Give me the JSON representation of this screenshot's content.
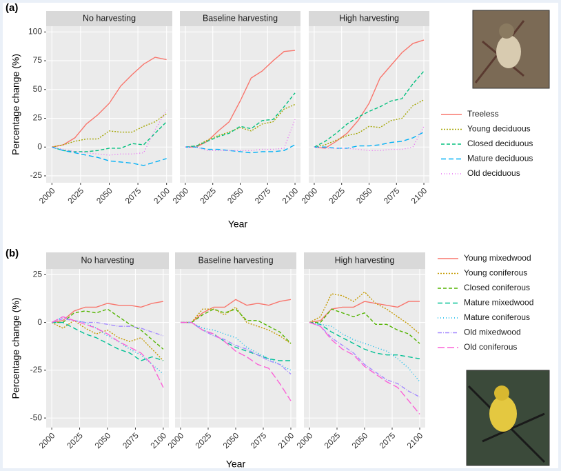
{
  "chart_data": [
    {
      "type": "line",
      "label": "(a)",
      "facets": [
        "No harvesting",
        "Baseline harvesting",
        "High harvesting"
      ],
      "xlabel": "Year",
      "ylabel": "Percentage change (%)",
      "x": [
        2000,
        2010,
        2020,
        2030,
        2040,
        2050,
        2060,
        2070,
        2080,
        2090,
        2100
      ],
      "xlim": [
        1995,
        2105
      ],
      "xticks": [
        2000,
        2025,
        2050,
        2075,
        2100
      ],
      "ylim": [
        -31,
        105
      ],
      "yticks": [
        -25,
        0,
        25,
        50,
        75,
        100
      ],
      "grid": true,
      "series": [
        {
          "name": "Treeless",
          "color": "#F8766D",
          "linestyle": "solid",
          "values": [
            [
              0,
              2,
              8,
              20,
              28,
              38,
              53,
              63,
              72,
              78,
              76
            ],
            [
              0,
              0,
              5,
              14,
              22,
              40,
              60,
              66,
              75,
              83,
              84
            ],
            [
              0,
              -1,
              5,
              12,
              23,
              38,
              60,
              71,
              82,
              90,
              93
            ]
          ]
        },
        {
          "name": "Young deciduous",
          "color": "#A3A500",
          "linestyle": "dotted",
          "values": [
            [
              0,
              2,
              5,
              7,
              7,
              14,
              13,
              13,
              18,
              22,
              29
            ],
            [
              0,
              1,
              6,
              10,
              13,
              17,
              14,
              20,
              22,
              33,
              37
            ],
            [
              0,
              2,
              6,
              10,
              12,
              18,
              17,
              23,
              25,
              36,
              41
            ]
          ]
        },
        {
          "name": "Closed deciduous",
          "color": "#00BF7D",
          "linestyle": "dashed",
          "values": [
            [
              0,
              -3,
              -4,
              -4,
              -3,
              -1,
              -1,
              3,
              2,
              12,
              22
            ],
            [
              0,
              1,
              5,
              9,
              12,
              18,
              16,
              23,
              24,
              35,
              47
            ],
            [
              0,
              5,
              12,
              20,
              26,
              31,
              35,
              40,
              42,
              55,
              66
            ]
          ]
        },
        {
          "name": "Mature deciduous",
          "color": "#00B0F6",
          "linestyle": "longdash",
          "values": [
            [
              0,
              -3,
              -5,
              -7,
              -9,
              -12,
              -13,
              -14,
              -16,
              -13,
              -10
            ],
            [
              0,
              0,
              -2,
              -2,
              -3,
              -4,
              -5,
              -4,
              -4,
              -3,
              2
            ],
            [
              0,
              0,
              -1,
              -1,
              1,
              1,
              2,
              4,
              5,
              8,
              13
            ]
          ]
        },
        {
          "name": "Old deciduous",
          "color": "#E76BF3",
          "linestyle": "finedot",
          "values": [
            [
              0,
              -2,
              -4,
              -5,
              -6,
              -7,
              -6,
              -6,
              -5,
              15,
              32
            ],
            [
              0,
              0,
              -3,
              -3,
              -3,
              -3,
              -3,
              -2,
              -2,
              -1,
              24
            ],
            [
              0,
              -1,
              -1,
              -1,
              -2,
              -3,
              -3,
              -2,
              -2,
              0,
              18
            ]
          ]
        }
      ]
    },
    {
      "type": "line",
      "label": "(b)",
      "facets": [
        "No harvesting",
        "Baseline harvesting",
        "High harvesting"
      ],
      "xlabel": "Year",
      "ylabel": "Percentage change (%)",
      "x": [
        2000,
        2010,
        2020,
        2030,
        2040,
        2050,
        2060,
        2070,
        2080,
        2090,
        2100
      ],
      "xlim": [
        1995,
        2105
      ],
      "xticks": [
        2000,
        2025,
        2050,
        2075,
        2100
      ],
      "ylim": [
        -55,
        28
      ],
      "yticks": [
        -50,
        -25,
        0,
        25
      ],
      "grid": true,
      "series": [
        {
          "name": "Young mixedwood",
          "color": "#F8766D",
          "linestyle": "solid",
          "values": [
            [
              0,
              1,
              6,
              8,
              8,
              10,
              9,
              9,
              8,
              10,
              11
            ],
            [
              0,
              0,
              5,
              8,
              8,
              12,
              9,
              10,
              9,
              11,
              12
            ],
            [
              0,
              1,
              7,
              8,
              8,
              11,
              10,
              9,
              8,
              11,
              11
            ]
          ]
        },
        {
          "name": "Young coniferous",
          "color": "#C49A00",
          "linestyle": "dotted",
          "values": [
            [
              0,
              -3,
              1,
              -3,
              -6,
              -4,
              -8,
              -10,
              -8,
              -14,
              -20
            ],
            [
              0,
              0,
              7,
              7,
              4,
              8,
              0,
              -2,
              -4,
              -7,
              -11
            ],
            [
              0,
              3,
              15,
              14,
              11,
              16,
              10,
              7,
              3,
              -1,
              -6
            ]
          ]
        },
        {
          "name": "Closed coniferous",
          "color": "#53B400",
          "linestyle": "dashed",
          "values": [
            [
              0,
              0,
              5,
              6,
              5,
              7,
              3,
              -1,
              -4,
              -9,
              -14
            ],
            [
              0,
              0,
              4,
              7,
              5,
              7,
              1,
              1,
              -2,
              -5,
              -11
            ],
            [
              0,
              0,
              7,
              5,
              3,
              5,
              -1,
              -1,
              -4,
              -6,
              -11
            ]
          ]
        },
        {
          "name": "Mature mixedwood",
          "color": "#00C094",
          "linestyle": "longdash",
          "values": [
            [
              0,
              0,
              -3,
              -6,
              -8,
              -11,
              -14,
              -16,
              -20,
              -18,
              -20
            ],
            [
              0,
              0,
              -4,
              -6,
              -10,
              -13,
              -15,
              -17,
              -19,
              -20,
              -20
            ],
            [
              0,
              -1,
              -5,
              -8,
              -11,
              -14,
              -16,
              -17,
              -17,
              -18,
              -19
            ]
          ]
        },
        {
          "name": "Mature coniferous",
          "color": "#00B6EB",
          "linestyle": "finedot",
          "values": [
            [
              0,
              3,
              1,
              0,
              -3,
              -7,
              -10,
              -14,
              -17,
              -22,
              -27
            ],
            [
              0,
              0,
              -3,
              -4,
              -6,
              -8,
              -13,
              -16,
              -19,
              -22,
              -25
            ],
            [
              0,
              -1,
              -2,
              -6,
              -9,
              -11,
              -13,
              -15,
              -19,
              -24,
              -31
            ]
          ]
        },
        {
          "name": "Old mixedwood",
          "color": "#A58AFF",
          "linestyle": "dotdash",
          "values": [
            [
              0,
              2,
              1,
              0,
              0,
              -1,
              -2,
              -2,
              -3,
              -5,
              -7
            ],
            [
              0,
              0,
              -4,
              -7,
              -9,
              -12,
              -14,
              -17,
              -20,
              -22,
              -27
            ],
            [
              0,
              -2,
              -8,
              -12,
              -16,
              -22,
              -26,
              -30,
              -32,
              -36,
              -39
            ]
          ]
        },
        {
          "name": "Old coniferous",
          "color": "#FB61D7",
          "linestyle": "twodash",
          "values": [
            [
              0,
              3,
              1,
              -1,
              -3,
              -6,
              -10,
              -13,
              -16,
              -22,
              -34
            ],
            [
              0,
              0,
              -4,
              -6,
              -10,
              -15,
              -18,
              -22,
              -24,
              -32,
              -41
            ],
            [
              0,
              -2,
              -9,
              -14,
              -17,
              -23,
              -27,
              -31,
              -34,
              -41,
              -48
            ]
          ]
        }
      ]
    }
  ]
}
